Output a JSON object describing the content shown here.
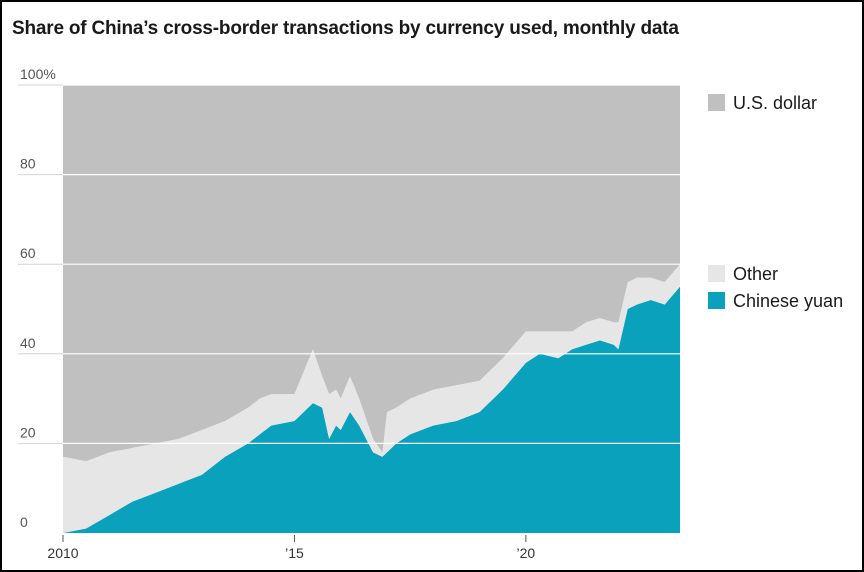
{
  "title": "Share of China’s cross-border transactions by currency used, monthly data",
  "colors": {
    "us_dollar": "#c0c0c0",
    "other": "#e6e6e6",
    "chinese_yuan": "#0aa1bd",
    "gridline": "#ffffff",
    "axis_text": "#555555"
  },
  "chart_data": {
    "type": "area",
    "stacked": true,
    "title": "Share of China’s cross-border transactions by currency used, monthly data",
    "xlabel": "",
    "ylabel": "",
    "xlim": [
      2010.0,
      2023.33
    ],
    "ylim": [
      0,
      100
    ],
    "yticks": [
      0,
      20,
      40,
      60,
      80,
      100
    ],
    "ytick_labels": [
      "0",
      "20",
      "40",
      "60",
      "80",
      "100%"
    ],
    "xticks": [
      2010,
      2015,
      2020
    ],
    "xtick_labels": [
      "2010",
      "’15",
      "’20"
    ],
    "grid": true,
    "legend": {
      "placement": "right",
      "entries": [
        {
          "name": "U.S. dollar",
          "color_key": "us_dollar"
        },
        {
          "name": "Other",
          "color_key": "other"
        },
        {
          "name": "Chinese yuan",
          "color_key": "chinese_yuan"
        }
      ]
    },
    "series": [
      {
        "name": "Chinese yuan",
        "x": [
          2010.0,
          2010.5,
          2011.0,
          2011.5,
          2012.0,
          2012.5,
          2013.0,
          2013.5,
          2014.0,
          2014.25,
          2014.5,
          2015.0,
          2015.4,
          2015.6,
          2015.75,
          2015.9,
          2016.0,
          2016.2,
          2016.4,
          2016.7,
          2016.9,
          2017.0,
          2017.2,
          2017.5,
          2018.0,
          2018.5,
          2019.0,
          2019.5,
          2020.0,
          2020.3,
          2020.7,
          2021.0,
          2021.3,
          2021.6,
          2021.9,
          2022.0,
          2022.2,
          2022.4,
          2022.7,
          2023.0,
          2023.33
        ],
        "values": [
          0,
          1,
          4,
          7,
          9,
          11,
          13,
          17,
          20,
          22,
          24,
          25,
          29,
          28,
          21,
          24,
          23,
          27,
          24,
          18,
          17,
          18,
          20,
          22,
          24,
          25,
          27,
          32,
          38,
          40,
          39,
          41,
          42,
          43,
          42,
          41,
          50,
          51,
          52,
          51,
          55
        ]
      },
      {
        "name": "Other",
        "x": [
          2010.0,
          2010.5,
          2011.0,
          2011.5,
          2012.0,
          2012.5,
          2013.0,
          2013.5,
          2014.0,
          2014.25,
          2014.5,
          2015.0,
          2015.4,
          2015.6,
          2015.75,
          2015.9,
          2016.0,
          2016.2,
          2016.4,
          2016.7,
          2016.9,
          2017.0,
          2017.2,
          2017.5,
          2018.0,
          2018.5,
          2019.0,
          2019.5,
          2020.0,
          2020.3,
          2020.7,
          2021.0,
          2021.3,
          2021.6,
          2021.9,
          2022.0,
          2022.2,
          2022.4,
          2022.7,
          2023.0,
          2023.33
        ],
        "values": [
          17,
          15,
          14,
          12,
          11,
          10,
          10,
          8,
          8,
          8,
          7,
          6,
          12,
          7,
          10,
          8,
          7,
          8,
          6,
          3,
          1,
          9,
          8,
          8,
          8,
          8,
          7,
          7,
          7,
          5,
          6,
          4,
          5,
          5,
          5,
          6,
          6,
          6,
          5,
          5,
          5
        ]
      },
      {
        "name": "U.S. dollar",
        "x": [
          2010.0,
          2010.5,
          2011.0,
          2011.5,
          2012.0,
          2012.5,
          2013.0,
          2013.5,
          2014.0,
          2014.25,
          2014.5,
          2015.0,
          2015.4,
          2015.6,
          2015.75,
          2015.9,
          2016.0,
          2016.2,
          2016.4,
          2016.7,
          2016.9,
          2017.0,
          2017.2,
          2017.5,
          2018.0,
          2018.5,
          2019.0,
          2019.5,
          2020.0,
          2020.3,
          2020.7,
          2021.0,
          2021.3,
          2021.6,
          2021.9,
          2022.0,
          2022.2,
          2022.4,
          2022.7,
          2023.0,
          2023.33
        ],
        "values": [
          83,
          84,
          82,
          81,
          80,
          79,
          77,
          75,
          72,
          70,
          69,
          69,
          59,
          65,
          69,
          68,
          70,
          65,
          70,
          79,
          82,
          73,
          72,
          70,
          68,
          67,
          66,
          61,
          55,
          55,
          55,
          55,
          53,
          52,
          53,
          53,
          44,
          43,
          43,
          44,
          40
        ]
      }
    ]
  }
}
